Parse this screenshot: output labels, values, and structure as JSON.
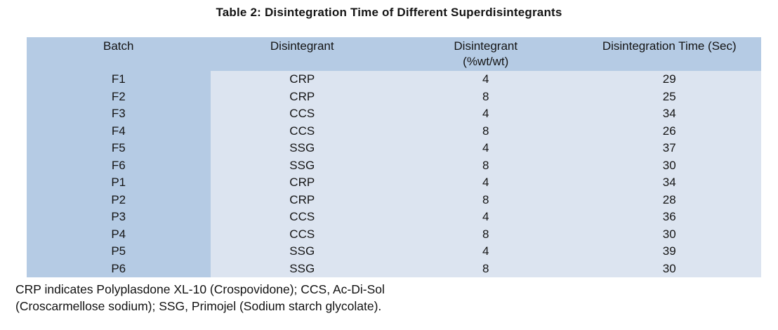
{
  "caption": "Table 2: Disintegration Time of Different Superdisintegrants",
  "table": {
    "columns": [
      "Batch",
      "Disintegrant",
      "Disintegrant\n(%wt/wt)",
      "Disintegration Time (Sec)"
    ],
    "rows": [
      [
        "F1",
        "CRP",
        "4",
        "29"
      ],
      [
        "F2",
        "CRP",
        "8",
        "25"
      ],
      [
        "F3",
        "CCS",
        "4",
        "34"
      ],
      [
        "F4",
        "CCS",
        "8",
        "26"
      ],
      [
        "F5",
        "SSG",
        "4",
        "37"
      ],
      [
        "F6",
        "SSG",
        "8",
        "30"
      ],
      [
        "P1",
        "CRP",
        "4",
        "34"
      ],
      [
        "P2",
        "CRP",
        "8",
        "28"
      ],
      [
        "P3",
        "CCS",
        "4",
        "36"
      ],
      [
        "P4",
        "CCS",
        "8",
        "30"
      ],
      [
        "P5",
        "SSG",
        "4",
        "39"
      ],
      [
        "P6",
        "SSG",
        "8",
        "30"
      ]
    ]
  },
  "footnote": {
    "line1": "CRP indicates Polyplasdone XL-10 (Crospovidone); CCS, Ac-Di-Sol",
    "line2": "(Croscarmellose sodium); SSG, Primojel (Sodium starch glycolate)."
  },
  "colors": {
    "header_blue": "#b5cbe4",
    "cell_blue": "#dce4f0",
    "text": "#141414"
  },
  "chart_data": {
    "type": "table",
    "title": "Table 2: Disintegration Time of Different Superdisintegrants",
    "columns": [
      "Batch",
      "Disintegrant",
      "Disintegrant (%wt/wt)",
      "Disintegration Time (Sec)"
    ],
    "rows": [
      [
        "F1",
        "CRP",
        4,
        29
      ],
      [
        "F2",
        "CRP",
        8,
        25
      ],
      [
        "F3",
        "CCS",
        4,
        34
      ],
      [
        "F4",
        "CCS",
        8,
        26
      ],
      [
        "F5",
        "SSG",
        4,
        37
      ],
      [
        "F6",
        "SSG",
        8,
        30
      ],
      [
        "P1",
        "CRP",
        4,
        34
      ],
      [
        "P2",
        "CRP",
        8,
        28
      ],
      [
        "P3",
        "CCS",
        4,
        36
      ],
      [
        "P4",
        "CCS",
        8,
        30
      ],
      [
        "P5",
        "SSG",
        4,
        39
      ],
      [
        "P6",
        "SSG",
        8,
        30
      ]
    ]
  }
}
